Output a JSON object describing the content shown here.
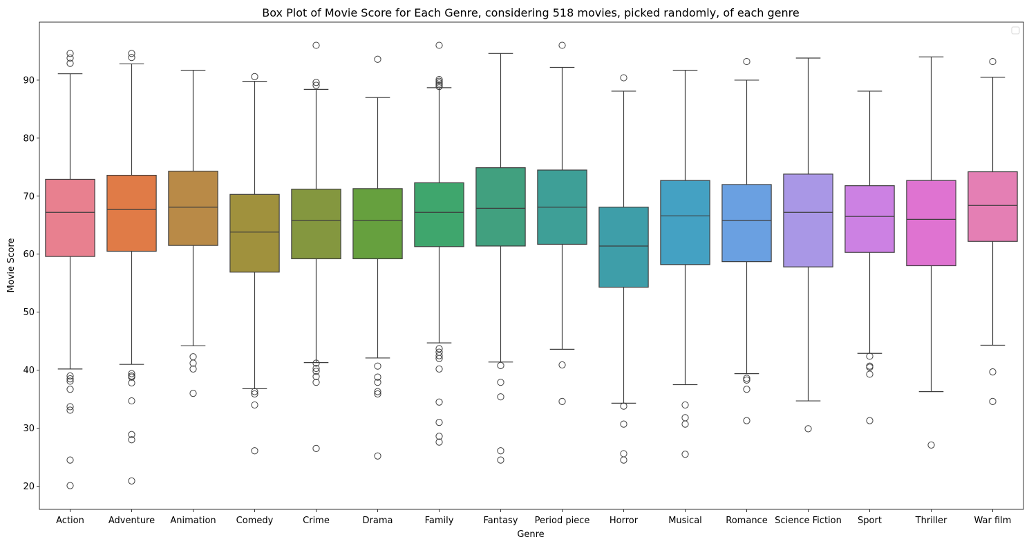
{
  "chart_data": {
    "type": "box",
    "title": "Box Plot of Movie Score for Each Genre, considering 518 movies, picked randomly, of each genre",
    "xlabel": "Genre",
    "ylabel": "Movie Score",
    "ylim": [
      16,
      100
    ],
    "yticks": [
      20,
      30,
      40,
      50,
      60,
      70,
      80,
      90
    ],
    "grid": false,
    "legend": {
      "position": "upper right",
      "entries": []
    },
    "categories": [
      {
        "name": "Action",
        "color": "#e8808f",
        "whisker_low": 40.2,
        "q1": 59.6,
        "median": 67.2,
        "q3": 72.9,
        "whisker_high": 91.1,
        "outliers": [
          94.6,
          93.8,
          92.9,
          39.0,
          38.5,
          38.1,
          36.7,
          33.7,
          33.1,
          24.5,
          20.1
        ]
      },
      {
        "name": "Adventure",
        "color": "#e07b47",
        "whisker_low": 41.0,
        "q1": 60.5,
        "median": 67.7,
        "q3": 73.6,
        "whisker_high": 92.8,
        "outliers": [
          94.6,
          93.9,
          39.4,
          39.0,
          38.8,
          37.8,
          34.7,
          28.9,
          28.0,
          20.9
        ]
      },
      {
        "name": "Animation",
        "color": "#b98a47",
        "whisker_low": 44.2,
        "q1": 61.5,
        "median": 68.1,
        "q3": 74.3,
        "whisker_high": 91.7,
        "outliers": [
          42.3,
          41.2,
          40.2,
          36.0
        ]
      },
      {
        "name": "Comedy",
        "color": "#a0913d",
        "whisker_low": 36.8,
        "q1": 56.9,
        "median": 63.8,
        "q3": 70.3,
        "whisker_high": 89.8,
        "outliers": [
          90.6,
          36.3,
          35.9,
          34.0,
          26.1
        ]
      },
      {
        "name": "Crime",
        "color": "#84973f",
        "whisker_low": 41.3,
        "q1": 59.2,
        "median": 65.8,
        "q3": 71.2,
        "whisker_high": 88.4,
        "outliers": [
          96.0,
          89.6,
          89.1,
          41.2,
          40.3,
          39.8,
          38.9,
          37.9,
          26.5
        ]
      },
      {
        "name": "Drama",
        "color": "#66a03e",
        "whisker_low": 42.1,
        "q1": 59.2,
        "median": 65.8,
        "q3": 71.3,
        "whisker_high": 87.0,
        "outliers": [
          93.6,
          40.7,
          38.8,
          37.9,
          36.3,
          35.9,
          25.2
        ]
      },
      {
        "name": "Family",
        "color": "#3fa66d",
        "whisker_low": 44.7,
        "q1": 61.3,
        "median": 67.2,
        "q3": 72.3,
        "whisker_high": 88.7,
        "outliers": [
          96.0,
          90.1,
          89.8,
          89.5,
          89.2,
          88.9,
          43.7,
          43.1,
          42.5,
          42.0,
          40.2,
          34.5,
          31.0,
          28.6,
          27.6
        ]
      },
      {
        "name": "Fantasy",
        "color": "#41a07f",
        "whisker_low": 41.4,
        "q1": 61.4,
        "median": 67.9,
        "q3": 74.9,
        "whisker_high": 94.6,
        "outliers": [
          40.8,
          37.9,
          35.4,
          26.1,
          24.5
        ]
      },
      {
        "name": "Period piece",
        "color": "#3e9f97",
        "whisker_low": 43.6,
        "q1": 61.7,
        "median": 68.1,
        "q3": 74.5,
        "whisker_high": 92.2,
        "outliers": [
          96.0,
          40.9,
          34.6
        ]
      },
      {
        "name": "Horror",
        "color": "#3e9ea9",
        "whisker_low": 34.3,
        "q1": 54.3,
        "median": 61.4,
        "q3": 68.1,
        "whisker_high": 88.1,
        "outliers": [
          90.4,
          33.8,
          30.7,
          25.6,
          24.5
        ]
      },
      {
        "name": "Musical",
        "color": "#44a1c3",
        "whisker_low": 37.5,
        "q1": 58.2,
        "median": 66.6,
        "q3": 72.7,
        "whisker_high": 91.7,
        "outliers": [
          34.0,
          31.8,
          30.7,
          25.5
        ]
      },
      {
        "name": "Romance",
        "color": "#6aa0e1",
        "whisker_low": 39.4,
        "q1": 58.7,
        "median": 65.8,
        "q3": 72.0,
        "whisker_high": 90.0,
        "outliers": [
          93.2,
          38.6,
          38.3,
          36.7,
          31.3
        ]
      },
      {
        "name": "Science Fiction",
        "color": "#a997e6",
        "whisker_low": 34.7,
        "q1": 57.8,
        "median": 67.2,
        "q3": 73.8,
        "whisker_high": 93.8,
        "outliers": [
          29.9
        ]
      },
      {
        "name": "Sport",
        "color": "#cc81e3",
        "whisker_low": 42.9,
        "q1": 60.3,
        "median": 66.5,
        "q3": 71.8,
        "whisker_high": 88.1,
        "outliers": [
          42.4,
          40.7,
          40.5,
          39.3,
          31.3
        ]
      },
      {
        "name": "Thriller",
        "color": "#df73d1",
        "whisker_low": 36.3,
        "q1": 58.0,
        "median": 66.0,
        "q3": 72.7,
        "whisker_high": 94.0,
        "outliers": [
          27.1
        ]
      },
      {
        "name": "War film",
        "color": "#e47fb4",
        "whisker_low": 44.3,
        "q1": 62.2,
        "median": 68.4,
        "q3": 74.2,
        "whisker_high": 90.5,
        "outliers": [
          93.2,
          39.7,
          34.6
        ]
      }
    ]
  }
}
